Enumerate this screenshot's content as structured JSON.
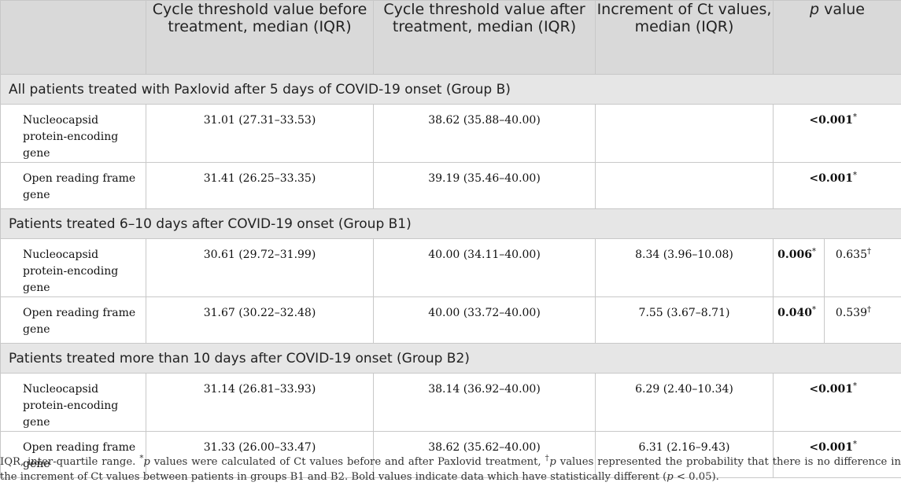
{
  "header": {
    "col1": "",
    "col2": "Cycle threshold value before treatment, median (IQR)",
    "col3": "Cycle threshold value after treatment, median (IQR)",
    "col4": "Increment of Ct values, median (IQR)",
    "col5_italic": "p",
    "col5_rest": " value"
  },
  "groups": [
    {
      "title": "All patients treated with Paxlovid after 5 days of COVID-19 onset (Group B)",
      "rows": [
        {
          "label": "Nucleocapsid protein-encoding gene",
          "before": "31.01 (27.31–33.53)",
          "after": "38.62 (35.88–40.00)",
          "increment": "",
          "p1": "<0.001",
          "p1_mark": "*"
        },
        {
          "label": "Open reading frame gene",
          "before": "31.41 (26.25–33.35)",
          "after": "39.19 (35.46–40.00)",
          "increment": "",
          "p1": "<0.001",
          "p1_mark": "*"
        }
      ]
    },
    {
      "title": "Patients treated 6–10 days after COVID-19 onset (Group B1)",
      "rows": [
        {
          "label": "Nucleocapsid protein-encoding gene",
          "before": "30.61 (29.72–31.99)",
          "after": "40.00 (34.11–40.00)",
          "increment": "8.34 (3.96–10.08)",
          "p1": "0.006",
          "p1_mark": "*",
          "p2": "0.635",
          "p2_mark": "†"
        },
        {
          "label": "Open reading frame gene",
          "before": "31.67 (30.22–32.48)",
          "after": "40.00 (33.72–40.00)",
          "increment": "7.55 (3.67–8.71)",
          "p1": "0.040",
          "p1_mark": "*",
          "p2": "0.539",
          "p2_mark": "†"
        }
      ]
    },
    {
      "title": "Patients treated more than 10 days after COVID-19 onset (Group B2)",
      "rows": [
        {
          "label": "Nucleocapsid protein-encoding gene",
          "before": "31.14 (26.81–33.93)",
          "after": "38.14 (36.92–40.00)",
          "increment": "6.29 (2.40–10.34)",
          "p1": "<0.001",
          "p1_mark": "*"
        },
        {
          "label": "Open reading frame gene",
          "before": "31.33 (26.00–33.47)",
          "after": "38.62 (35.62–40.00)",
          "increment": "6.31 (2.16–9.43)",
          "p1": "<0.001",
          "p1_mark": "*"
        }
      ]
    }
  ],
  "footnote": {
    "part1": "IQR, inter-quartile range. ",
    "mark1": "*",
    "p_a": "p",
    "part2": " values were calculated of Ct values before and after Paxlovid treatment, ",
    "mark2": "†",
    "p_b": "p",
    "part3": " values represented the probability that there is no difference in the increment of Ct values between patients in groups B1 and B2. Bold values indicate data which have statistically different (",
    "p_c": "p",
    "part4": " < 0.05)."
  }
}
